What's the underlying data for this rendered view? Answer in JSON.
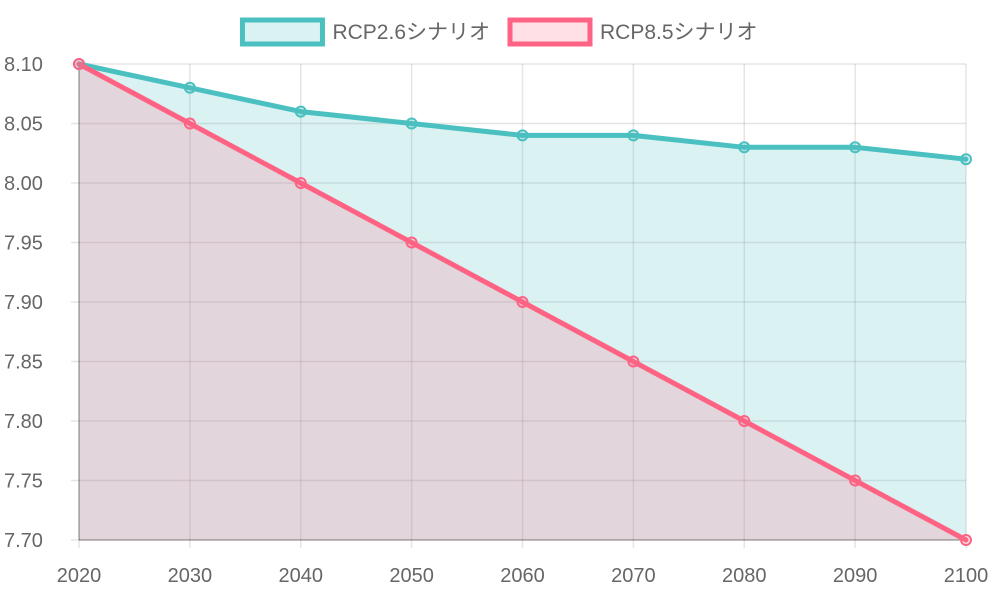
{
  "chart_data": {
    "type": "line",
    "x": [
      "2020",
      "2030",
      "2040",
      "2050",
      "2060",
      "2070",
      "2080",
      "2090",
      "2100"
    ],
    "series": [
      {
        "name": "RCP2.6シナリオ",
        "values": [
          8.1,
          8.08,
          8.06,
          8.05,
          8.04,
          8.04,
          8.03,
          8.03,
          8.02
        ],
        "color": "#4bc0c0",
        "fill": "rgba(75,192,192,0.2)"
      },
      {
        "name": "RCP8.5シナリオ",
        "values": [
          8.1,
          8.05,
          8.0,
          7.95,
          7.9,
          7.85,
          7.8,
          7.75,
          7.7
        ],
        "color": "#ff6384",
        "fill": "rgba(255,99,132,0.2)"
      }
    ],
    "ylim": [
      7.7,
      8.1
    ],
    "yticks": [
      "7.70",
      "7.75",
      "7.80",
      "7.85",
      "7.90",
      "7.95",
      "8.00",
      "8.05",
      "8.10"
    ],
    "grid": true,
    "legend_position": "top-center",
    "filled": true
  }
}
